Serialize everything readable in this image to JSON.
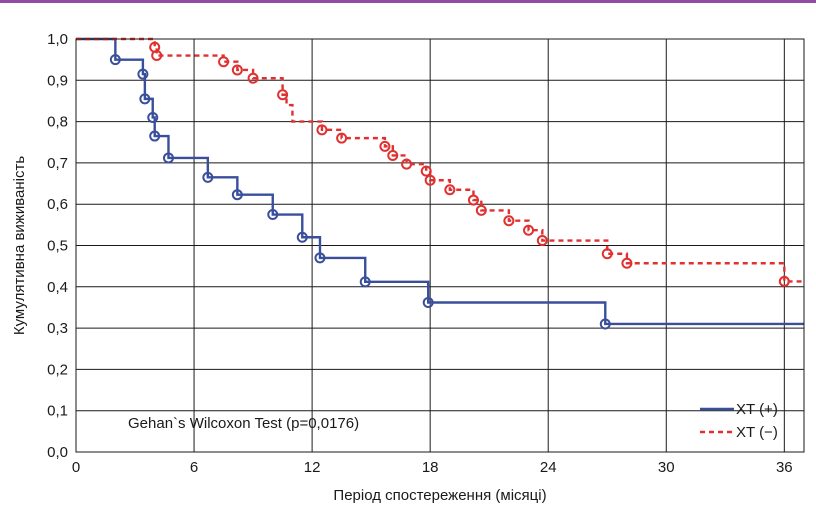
{
  "colors": {
    "top_rule": "#8f4da6",
    "grid": "#1a1a1a",
    "frame": "#1a1a1a"
  },
  "chart_data": {
    "type": "line",
    "subtype": "kaplan-meier step",
    "title": "",
    "xlabel": "Період спостереження (місяці)",
    "ylabel": "Кумулятивна виживаність",
    "xlim": [
      0,
      37
    ],
    "ylim": [
      0,
      1
    ],
    "x_ticks": [
      "0",
      "6",
      "12",
      "18",
      "24",
      "30",
      "36"
    ],
    "y_ticks": [
      "0,0",
      "0,1",
      "0,2",
      "0,3",
      "0,4",
      "0,5",
      "0,6",
      "0,7",
      "0,8",
      "0,9",
      "1,0"
    ],
    "grid": true,
    "legend_position": "bottom-right",
    "annotation": "Gehan`s Wilcoxon Test (p=0,0176)",
    "series": [
      {
        "name": "XT (+)",
        "color": "#3a4f9c",
        "style": "solid",
        "steps": [
          [
            0,
            1.0
          ],
          [
            2.0,
            0.95
          ],
          [
            3.4,
            0.915
          ],
          [
            3.5,
            0.855
          ],
          [
            3.9,
            0.81
          ],
          [
            4.0,
            0.765
          ],
          [
            4.7,
            0.712
          ],
          [
            6.7,
            0.665
          ],
          [
            8.2,
            0.623
          ],
          [
            10.0,
            0.575
          ],
          [
            11.5,
            0.52
          ],
          [
            12.4,
            0.47
          ],
          [
            14.7,
            0.412
          ],
          [
            17.9,
            0.362
          ],
          [
            26.9,
            0.31
          ]
        ],
        "end_x": 37,
        "censored": [
          [
            2.0,
            0.95
          ],
          [
            3.4,
            0.915
          ],
          [
            3.5,
            0.855
          ],
          [
            3.9,
            0.81
          ],
          [
            4.0,
            0.765
          ],
          [
            4.7,
            0.712
          ],
          [
            6.7,
            0.665
          ],
          [
            8.2,
            0.623
          ],
          [
            10.0,
            0.575
          ],
          [
            11.5,
            0.52
          ],
          [
            12.4,
            0.47
          ],
          [
            14.7,
            0.412
          ],
          [
            17.9,
            0.362
          ],
          [
            26.9,
            0.31
          ]
        ]
      },
      {
        "name": "XT (−)",
        "color": "#e03030",
        "style": "dashed",
        "steps": [
          [
            0,
            1.0
          ],
          [
            4.0,
            0.98
          ],
          [
            4.1,
            0.96
          ],
          [
            7.5,
            0.945
          ],
          [
            8.2,
            0.925
          ],
          [
            9.0,
            0.905
          ],
          [
            10.5,
            0.865
          ],
          [
            10.7,
            0.84
          ],
          [
            11.0,
            0.8
          ],
          [
            12.5,
            0.78
          ],
          [
            13.5,
            0.76
          ],
          [
            15.7,
            0.74
          ],
          [
            16.1,
            0.718
          ],
          [
            16.8,
            0.697
          ],
          [
            17.8,
            0.68
          ],
          [
            18.0,
            0.658
          ],
          [
            19.0,
            0.635
          ],
          [
            20.2,
            0.61
          ],
          [
            20.6,
            0.585
          ],
          [
            22.0,
            0.56
          ],
          [
            23.0,
            0.537
          ],
          [
            23.7,
            0.512
          ],
          [
            27.0,
            0.48
          ],
          [
            28.0,
            0.457
          ],
          [
            36.0,
            0.413
          ]
        ],
        "end_x": 37,
        "censored": [
          [
            4.0,
            0.98
          ],
          [
            4.1,
            0.96
          ],
          [
            7.5,
            0.945
          ],
          [
            8.2,
            0.925
          ],
          [
            9.0,
            0.905
          ],
          [
            10.5,
            0.865
          ],
          [
            12.5,
            0.78
          ],
          [
            13.5,
            0.76
          ],
          [
            15.7,
            0.74
          ],
          [
            16.1,
            0.718
          ],
          [
            16.8,
            0.697
          ],
          [
            17.8,
            0.68
          ],
          [
            18.0,
            0.658
          ],
          [
            19.0,
            0.635
          ],
          [
            20.2,
            0.61
          ],
          [
            20.6,
            0.585
          ],
          [
            22.0,
            0.56
          ],
          [
            23.0,
            0.537
          ],
          [
            23.7,
            0.512
          ],
          [
            27.0,
            0.48
          ],
          [
            28.0,
            0.457
          ],
          [
            36.0,
            0.413
          ]
        ]
      }
    ]
  }
}
